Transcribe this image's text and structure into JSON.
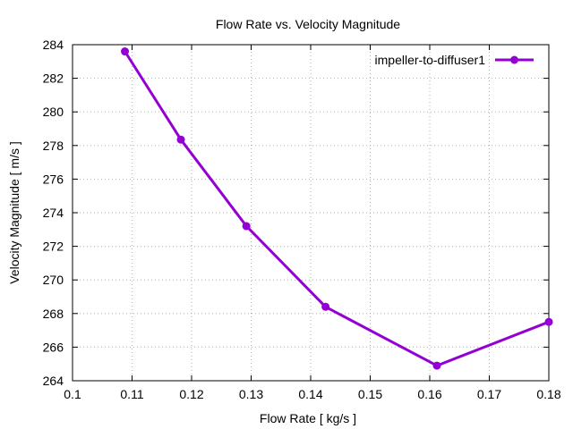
{
  "chart_data": {
    "type": "line",
    "title": "Flow Rate vs. Velocity Magnitude",
    "xlabel": "Flow Rate [ kg/s ]",
    "ylabel": "Velocity Magnitude [ m/s ]",
    "xlim": [
      0.1,
      0.18
    ],
    "ylim": [
      264,
      284
    ],
    "xticks": [
      "0.1",
      "0.11",
      "0.12",
      "0.13",
      "0.14",
      "0.15",
      "0.16",
      "0.17",
      "0.18"
    ],
    "yticks": [
      "264",
      "266",
      "268",
      "270",
      "272",
      "274",
      "276",
      "278",
      "280",
      "282",
      "284"
    ],
    "grid": true,
    "legend_position": "top-right",
    "series": [
      {
        "name": "impeller-to-diffuser1",
        "color": "#9400d3",
        "marker": "circle",
        "x": [
          0.1088,
          0.1182,
          0.1292,
          0.1425,
          0.1612,
          0.18
        ],
        "y": [
          283.6,
          278.35,
          273.2,
          268.4,
          264.9,
          267.5
        ]
      }
    ]
  }
}
